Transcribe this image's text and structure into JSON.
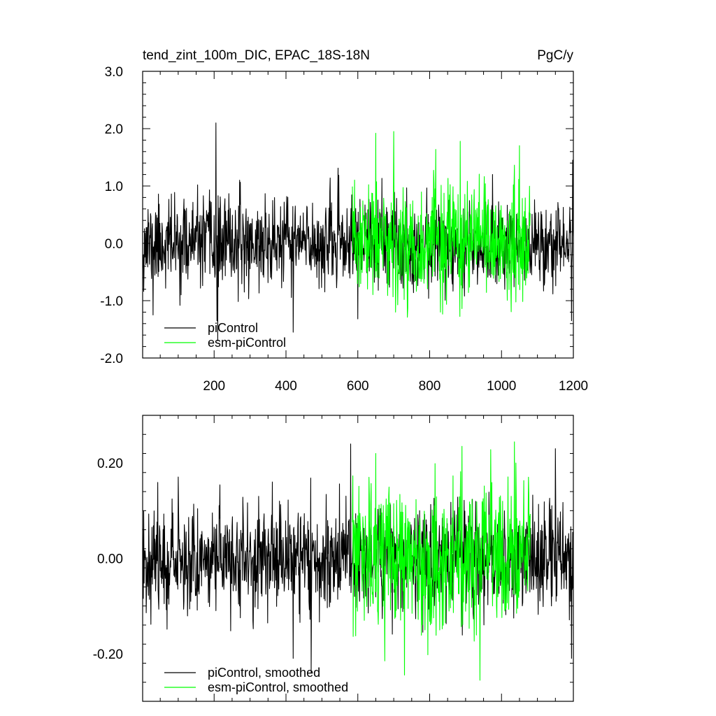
{
  "chart_data": [
    {
      "type": "line",
      "title_left": "tend_zint_100m_DIC, EPAC_18S-18N",
      "title_right": "PgC/y",
      "xlim": [
        1,
        1200
      ],
      "ylim": [
        -2.0,
        3.0
      ],
      "x_ticks": [
        200,
        400,
        600,
        800,
        1000,
        1200
      ],
      "y_ticks": [
        "3.0",
        "2.0",
        "1.0",
        "0.0",
        "-1.0",
        "-2.0"
      ],
      "y_tick_values": [
        3.0,
        2.0,
        1.0,
        0.0,
        -1.0,
        -2.0
      ],
      "legend_position": "bottom-left",
      "grid": false,
      "series": [
        {
          "name": "piControl",
          "color": "#000000",
          "x_range": [
            1,
            1200
          ],
          "amplitude": 0.38,
          "seed": 11,
          "extremes": [
            [
              205,
              2.1
            ],
            [
              208,
              -1.35
            ],
            [
              420,
              -1.55
            ],
            [
              30,
              -1.25
            ],
            [
              1195,
              -1.35
            ],
            [
              1198,
              1.45
            ],
            [
              210,
              -1.7
            ]
          ]
        },
        {
          "name": "esm-piControl",
          "color": "#00ff00",
          "x_range": [
            585,
            1080
          ],
          "amplitude": 0.5,
          "seed": 23,
          "extremes": [
            [
              650,
              1.92
            ],
            [
              700,
              1.95
            ],
            [
              705,
              -1.2
            ],
            [
              885,
              1.78
            ],
            [
              830,
              -1.2
            ]
          ]
        }
      ]
    },
    {
      "type": "line",
      "xlim": [
        1,
        1200
      ],
      "ylim": [
        -0.3,
        0.3
      ],
      "x_ticks": [
        200,
        400,
        600,
        800,
        1000,
        1200
      ],
      "y_ticks": [
        "0.20",
        "0.00",
        "-0.20"
      ],
      "y_tick_values": [
        0.2,
        0.0,
        -0.2
      ],
      "legend_position": "bottom-left",
      "grid": false,
      "series": [
        {
          "name": "piControl, smoothed",
          "color": "#000000",
          "x_range": [
            1,
            1200
          ],
          "amplitude": 0.055,
          "seed": 37,
          "extremes": [
            [
              580,
              0.24
            ],
            [
              420,
              -0.21
            ],
            [
              470,
              -0.24
            ],
            [
              1150,
              0.23
            ],
            [
              1195,
              -0.21
            ]
          ]
        },
        {
          "name": "esm-piControl, smoothed",
          "color": "#00ff00",
          "x_range": [
            585,
            1080
          ],
          "amplitude": 0.075,
          "seed": 53,
          "extremes": [
            [
              730,
              -0.245
            ],
            [
              890,
              -0.255
            ],
            [
              650,
              0.22
            ],
            [
              890,
              0.235
            ],
            [
              1040,
              0.2
            ]
          ]
        }
      ]
    }
  ]
}
